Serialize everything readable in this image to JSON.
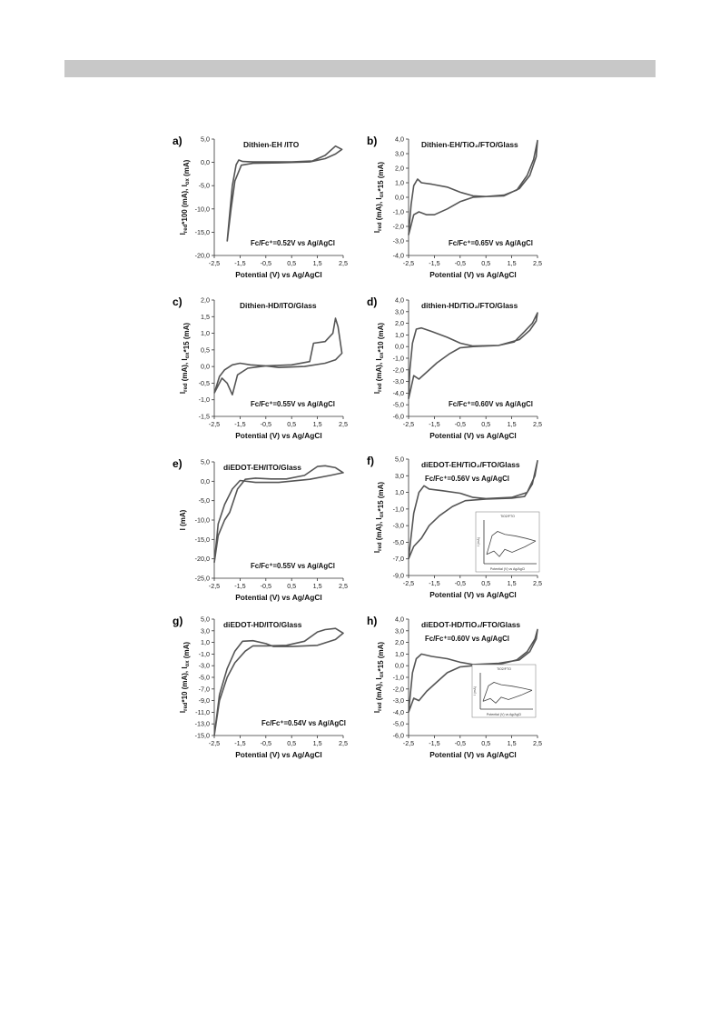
{
  "chart_data": [
    {
      "id": "a",
      "letter": "a)",
      "type": "line",
      "title": "Dithien-EH /ITO",
      "annotation": "Fc/Fc⁺=0.52V vs Ag/AgCl",
      "ylabel": "I_red*100 (mA), I_ox (mA)",
      "xlabel": "Potential (V) vs Ag/AgCl",
      "xlim": [
        -2.5,
        2.5
      ],
      "ylim": [
        -20,
        5
      ],
      "xticks": [
        "-2,5",
        "-1,5",
        "-0,5",
        "0,5",
        "1,5",
        "2,5"
      ],
      "yticks": [
        "5,0",
        "0,0",
        "-5,0",
        "-10,0",
        "-15,0",
        "-20,0"
      ],
      "series": [
        {
          "points": [
            [
              -2.0,
              -17
            ],
            [
              -1.9,
              -11
            ],
            [
              -1.8,
              -5
            ],
            [
              -1.65,
              -0.5
            ],
            [
              -1.55,
              0.5
            ],
            [
              -1.4,
              0.2
            ],
            [
              -1.0,
              0.1
            ],
            [
              0.5,
              0.1
            ],
            [
              1.3,
              0.3
            ],
            [
              1.8,
              1.5
            ],
            [
              2.2,
              3.5
            ],
            [
              2.45,
              2.8
            ],
            [
              2.2,
              1.8
            ],
            [
              1.8,
              0.8
            ],
            [
              1.2,
              0.1
            ],
            [
              0,
              -0.1
            ],
            [
              -1.0,
              -0.2
            ],
            [
              -1.45,
              -0.6
            ],
            [
              -1.7,
              -4
            ],
            [
              -1.85,
              -10
            ],
            [
              -2.0,
              -17
            ]
          ]
        }
      ]
    },
    {
      "id": "b",
      "letter": "b)",
      "type": "line",
      "title": "Dithien-EH/TiO₂/FTO/Glass",
      "annotation": "Fc/Fc⁺=0.65V vs Ag/AgCl",
      "ylabel": "I_red (mA), I_ox*15 (mA)",
      "xlabel": "Potential (V) vs Ag/AgCl",
      "xlim": [
        -2.5,
        2.5
      ],
      "ylim": [
        -4,
        4
      ],
      "xticks": [
        "-2,5",
        "-1,5",
        "-0,5",
        "0,5",
        "1,5",
        "2,5"
      ],
      "yticks": [
        "4,0",
        "3,0",
        "2,0",
        "1,0",
        "0,0",
        "-1,0",
        "-2,0",
        "-3,0",
        "-4,0"
      ],
      "series": [
        {
          "points": [
            [
              -2.5,
              -2.6
            ],
            [
              -2.3,
              -1.2
            ],
            [
              -2.1,
              -1.0
            ],
            [
              -1.8,
              -1.2
            ],
            [
              -1.5,
              -1.2
            ],
            [
              -1.0,
              -0.8
            ],
            [
              -0.5,
              -0.3
            ],
            [
              0,
              0
            ],
            [
              0.5,
              0.05
            ],
            [
              1.2,
              0.15
            ],
            [
              1.7,
              0.5
            ],
            [
              2.1,
              1.5
            ],
            [
              2.35,
              2.6
            ],
            [
              2.5,
              3.9
            ],
            [
              2.45,
              2.8
            ],
            [
              2.2,
              1.5
            ],
            [
              1.8,
              0.6
            ],
            [
              1.2,
              0.1
            ],
            [
              0.5,
              0.05
            ],
            [
              0,
              0.1
            ],
            [
              -0.5,
              0.35
            ],
            [
              -1.0,
              0.7
            ],
            [
              -1.6,
              0.9
            ],
            [
              -2.0,
              1.0
            ],
            [
              -2.15,
              1.25
            ],
            [
              -2.3,
              0.8
            ],
            [
              -2.4,
              -0.5
            ],
            [
              -2.5,
              -2.6
            ]
          ]
        }
      ]
    },
    {
      "id": "c",
      "letter": "c)",
      "type": "line",
      "title": "Dithien-HD/ITO/Glass",
      "annotation": "Fc/Fc⁺=0.55V vs Ag/AgCl",
      "ylabel": "I_red (mA), I_ox*15 (mA)",
      "xlabel": "Potential (V) vs Ag/AgCl",
      "xlim": [
        -2.5,
        2.5
      ],
      "ylim": [
        -1.5,
        2
      ],
      "xticks": [
        "-2,5",
        "-1,5",
        "-0,5",
        "0,5",
        "1,5",
        "2,5"
      ],
      "yticks": [
        "2,0",
        "1,5",
        "1,0",
        "0,5",
        "0,0",
        "-0,5",
        "-1,0",
        "-1,5"
      ],
      "series": [
        {
          "points": [
            [
              -2.5,
              -0.8
            ],
            [
              -2.2,
              -0.35
            ],
            [
              -2.0,
              -0.5
            ],
            [
              -1.8,
              -0.85
            ],
            [
              -1.6,
              -0.25
            ],
            [
              -1.2,
              -0.05
            ],
            [
              -0.5,
              0.02
            ],
            [
              0.5,
              0.05
            ],
            [
              1.2,
              0.15
            ],
            [
              1.35,
              0.7
            ],
            [
              1.8,
              0.75
            ],
            [
              2.1,
              1.0
            ],
            [
              2.2,
              1.45
            ],
            [
              2.3,
              1.2
            ],
            [
              2.45,
              0.4
            ],
            [
              2.2,
              0.2
            ],
            [
              1.8,
              0.1
            ],
            [
              1.0,
              0.0
            ],
            [
              0,
              -0.03
            ],
            [
              -0.5,
              0.02
            ],
            [
              -1.1,
              0.05
            ],
            [
              -1.5,
              0.1
            ],
            [
              -1.8,
              0.05
            ],
            [
              -2.1,
              -0.1
            ],
            [
              -2.3,
              -0.3
            ],
            [
              -2.5,
              -0.8
            ]
          ]
        }
      ]
    },
    {
      "id": "d",
      "letter": "d)",
      "type": "line",
      "title": "dithien-HD/TiO₂/FTO/Glass",
      "annotation": "Fc/Fc⁺=0.60V vs Ag/AgCl",
      "ylabel": "I_red (mA), I_ox*10 (mA)",
      "xlabel": "Potential (V) vs Ag/AgCl",
      "xlim": [
        -2.5,
        2.5
      ],
      "ylim": [
        -6,
        4
      ],
      "xticks": [
        "-2,5",
        "-1,5",
        "-0,5",
        "0,5",
        "1,5",
        "2,5"
      ],
      "yticks": [
        "4,0",
        "3,0",
        "2,0",
        "1,0",
        "0,0",
        "-1,0",
        "-2,0",
        "-3,0",
        "-4,0",
        "-5,0",
        "-6,0"
      ],
      "series": [
        {
          "points": [
            [
              -2.5,
              -4.5
            ],
            [
              -2.3,
              -2.5
            ],
            [
              -2.1,
              -2.8
            ],
            [
              -1.8,
              -2.2
            ],
            [
              -1.4,
              -1.4
            ],
            [
              -0.9,
              -0.6
            ],
            [
              -0.5,
              -0.1
            ],
            [
              0,
              0
            ],
            [
              1.0,
              0.1
            ],
            [
              1.6,
              0.4
            ],
            [
              2.0,
              1.3
            ],
            [
              2.3,
              2.0
            ],
            [
              2.5,
              2.9
            ],
            [
              2.45,
              2.2
            ],
            [
              2.2,
              1.4
            ],
            [
              1.8,
              0.6
            ],
            [
              1.0,
              0.1
            ],
            [
              0,
              0.05
            ],
            [
              -0.5,
              0.3
            ],
            [
              -1.0,
              0.8
            ],
            [
              -1.6,
              1.3
            ],
            [
              -2.0,
              1.6
            ],
            [
              -2.2,
              1.5
            ],
            [
              -2.35,
              0.3
            ],
            [
              -2.45,
              -2.0
            ],
            [
              -2.5,
              -4.5
            ]
          ]
        }
      ]
    },
    {
      "id": "e",
      "letter": "e)",
      "type": "line",
      "title": "diEDOT-EH/ITO/Glass",
      "annotation": "Fc/Fc⁺=0.55V vs Ag/AgCl",
      "ylabel": "I (mA)",
      "xlabel": "Potential (V) vs Ag/AgCl",
      "xlim": [
        -2.5,
        2.5
      ],
      "ylim": [
        -25,
        5
      ],
      "xticks": [
        "-2,5",
        "-1,5",
        "-0,5",
        "0,5",
        "1,5",
        "2,5"
      ],
      "yticks": [
        "5,0",
        "0,0",
        "-5,0",
        "-10,0",
        "-15,0",
        "-20,0",
        "-25,0"
      ],
      "series": [
        {
          "points": [
            [
              -2.5,
              -21
            ],
            [
              -2.35,
              -14
            ],
            [
              -2.1,
              -10
            ],
            [
              -1.9,
              -8
            ],
            [
              -1.6,
              -2
            ],
            [
              -1.3,
              0.5
            ],
            [
              -0.9,
              0.8
            ],
            [
              -0.3,
              0.6
            ],
            [
              0.3,
              0.6
            ],
            [
              1.0,
              1.5
            ],
            [
              1.5,
              3.8
            ],
            [
              1.8,
              4.0
            ],
            [
              2.2,
              3.5
            ],
            [
              2.5,
              2.2
            ],
            [
              2.0,
              1.5
            ],
            [
              1.2,
              0.5
            ],
            [
              0,
              -0.3
            ],
            [
              -0.9,
              -0.3
            ],
            [
              -1.5,
              0.2
            ],
            [
              -1.8,
              -2
            ],
            [
              -2.1,
              -6
            ],
            [
              -2.35,
              -11
            ],
            [
              -2.5,
              -21
            ]
          ]
        }
      ]
    },
    {
      "id": "f",
      "letter": "f)",
      "type": "line",
      "title": "diEDOT-EH/TiO₂/FTO/Glass",
      "annotation": "Fc/Fc⁺=0.56V vs Ag/AgCl",
      "ylabel": "I_red (mA), I_ox*15 (mA)",
      "xlabel": "Potential (V) vs Ag/AgCl",
      "xlim": [
        -2.5,
        2.5
      ],
      "ylim": [
        -9,
        5
      ],
      "xticks": [
        "-2,5",
        "-1,5",
        "-0,5",
        "0,5",
        "1,5",
        "2,5"
      ],
      "yticks": [
        "5,0",
        "3,0",
        "1,0",
        "-1,0",
        "-3,0",
        "-5,0",
        "-7,0",
        "-9,0"
      ],
      "series": [
        {
          "points": [
            [
              -2.5,
              -7
            ],
            [
              -2.3,
              -5.5
            ],
            [
              -2.0,
              -4.5
            ],
            [
              -1.7,
              -3.0
            ],
            [
              -1.3,
              -1.8
            ],
            [
              -0.8,
              -0.7
            ],
            [
              -0.3,
              0
            ],
            [
              0.5,
              0.2
            ],
            [
              1.5,
              0.3
            ],
            [
              2.0,
              0.5
            ],
            [
              2.3,
              2.0
            ],
            [
              2.5,
              4.8
            ],
            [
              2.4,
              3.0
            ],
            [
              2.1,
              1.0
            ],
            [
              1.5,
              0.4
            ],
            [
              0.5,
              0.25
            ],
            [
              0,
              0.4
            ],
            [
              -0.5,
              0.9
            ],
            [
              -1.2,
              1.2
            ],
            [
              -1.7,
              1.4
            ],
            [
              -1.9,
              1.8
            ],
            [
              -2.1,
              1.0
            ],
            [
              -2.3,
              -1.5
            ],
            [
              -2.5,
              -7
            ]
          ]
        }
      ],
      "inset": {
        "title": "TiO2/FTO",
        "xlabel": "Potential (V) vs Ag/AgCl",
        "ylabel": "I (mA)"
      }
    },
    {
      "id": "g",
      "letter": "g)",
      "type": "line",
      "title": "diEDOT-HD/ITO/Glass",
      "annotation": "Fc/Fc⁺=0.54V vs Ag/AgCl",
      "ylabel": "I_red*10 (mA), I_ox (mA)",
      "xlabel": "Potential (V) vs Ag/AgCl",
      "xlim": [
        -2.5,
        2.5
      ],
      "ylim": [
        -15,
        5
      ],
      "xticks": [
        "-2,5",
        "-1,5",
        "-0,5",
        "0,5",
        "1,5",
        "2,5"
      ],
      "yticks": [
        "5,0",
        "3,0",
        "1,0",
        "-1,0",
        "-3,0",
        "-5,0",
        "-7,0",
        "-9,0",
        "-11,0",
        "-13,0",
        "-15,0"
      ],
      "series": [
        {
          "points": [
            [
              -2.5,
              -15
            ],
            [
              -2.3,
              -9
            ],
            [
              -2.0,
              -5
            ],
            [
              -1.7,
              -2.5
            ],
            [
              -1.3,
              -0.5
            ],
            [
              -1.0,
              0.4
            ],
            [
              -0.5,
              0.4
            ],
            [
              0.3,
              0.5
            ],
            [
              1.0,
              1.2
            ],
            [
              1.5,
              2.8
            ],
            [
              1.8,
              3.2
            ],
            [
              2.2,
              3.4
            ],
            [
              2.5,
              2.6
            ],
            [
              2.2,
              1.5
            ],
            [
              1.5,
              0.5
            ],
            [
              0.5,
              0.3
            ],
            [
              -0.2,
              0.3
            ],
            [
              -0.5,
              0.8
            ],
            [
              -1.0,
              1.3
            ],
            [
              -1.4,
              1.2
            ],
            [
              -1.7,
              -0.5
            ],
            [
              -2.0,
              -3.5
            ],
            [
              -2.3,
              -8
            ],
            [
              -2.5,
              -15
            ]
          ]
        }
      ]
    },
    {
      "id": "h",
      "letter": "h)",
      "type": "line",
      "title": "diEDOT-HD/TiO₂/FTO/Glass",
      "annotation": "Fc/Fc⁺=0.60V vs Ag/AgCl",
      "ylabel": "I_red (mA), I_ox*15 (mA)",
      "xlabel": "Potential (V) vs Ag/AgCl",
      "xlim": [
        -2.5,
        2.5
      ],
      "ylim": [
        -6,
        4
      ],
      "xticks": [
        "-2,5",
        "-1,5",
        "-0,5",
        "0,5",
        "1,5",
        "2,5"
      ],
      "yticks": [
        "4,0",
        "3,0",
        "2,0",
        "1,0",
        "0,0",
        "-1,0",
        "-2,0",
        "-3,0",
        "-4,0",
        "-5,0",
        "-6,0"
      ],
      "series": [
        {
          "points": [
            [
              -2.5,
              -4.0
            ],
            [
              -2.3,
              -2.8
            ],
            [
              -2.1,
              -3.0
            ],
            [
              -1.8,
              -2.2
            ],
            [
              -1.4,
              -1.4
            ],
            [
              -1.0,
              -0.6
            ],
            [
              -0.5,
              -0.1
            ],
            [
              0,
              0
            ],
            [
              1.0,
              0.1
            ],
            [
              1.7,
              0.5
            ],
            [
              2.1,
              1.2
            ],
            [
              2.4,
              2.3
            ],
            [
              2.5,
              3.1
            ],
            [
              2.45,
              2.3
            ],
            [
              2.2,
              1.2
            ],
            [
              1.8,
              0.5
            ],
            [
              1.0,
              0.2
            ],
            [
              0,
              0.1
            ],
            [
              -0.5,
              0.3
            ],
            [
              -1.0,
              0.6
            ],
            [
              -1.6,
              0.8
            ],
            [
              -2.0,
              1.0
            ],
            [
              -2.2,
              0.6
            ],
            [
              -2.35,
              -0.6
            ],
            [
              -2.5,
              -4.0
            ]
          ]
        }
      ],
      "inset": {
        "title": "TiO2/FTO",
        "xlabel": "Potential (V) vs Ag/AgCl",
        "ylabel": "I (mA)"
      }
    }
  ]
}
